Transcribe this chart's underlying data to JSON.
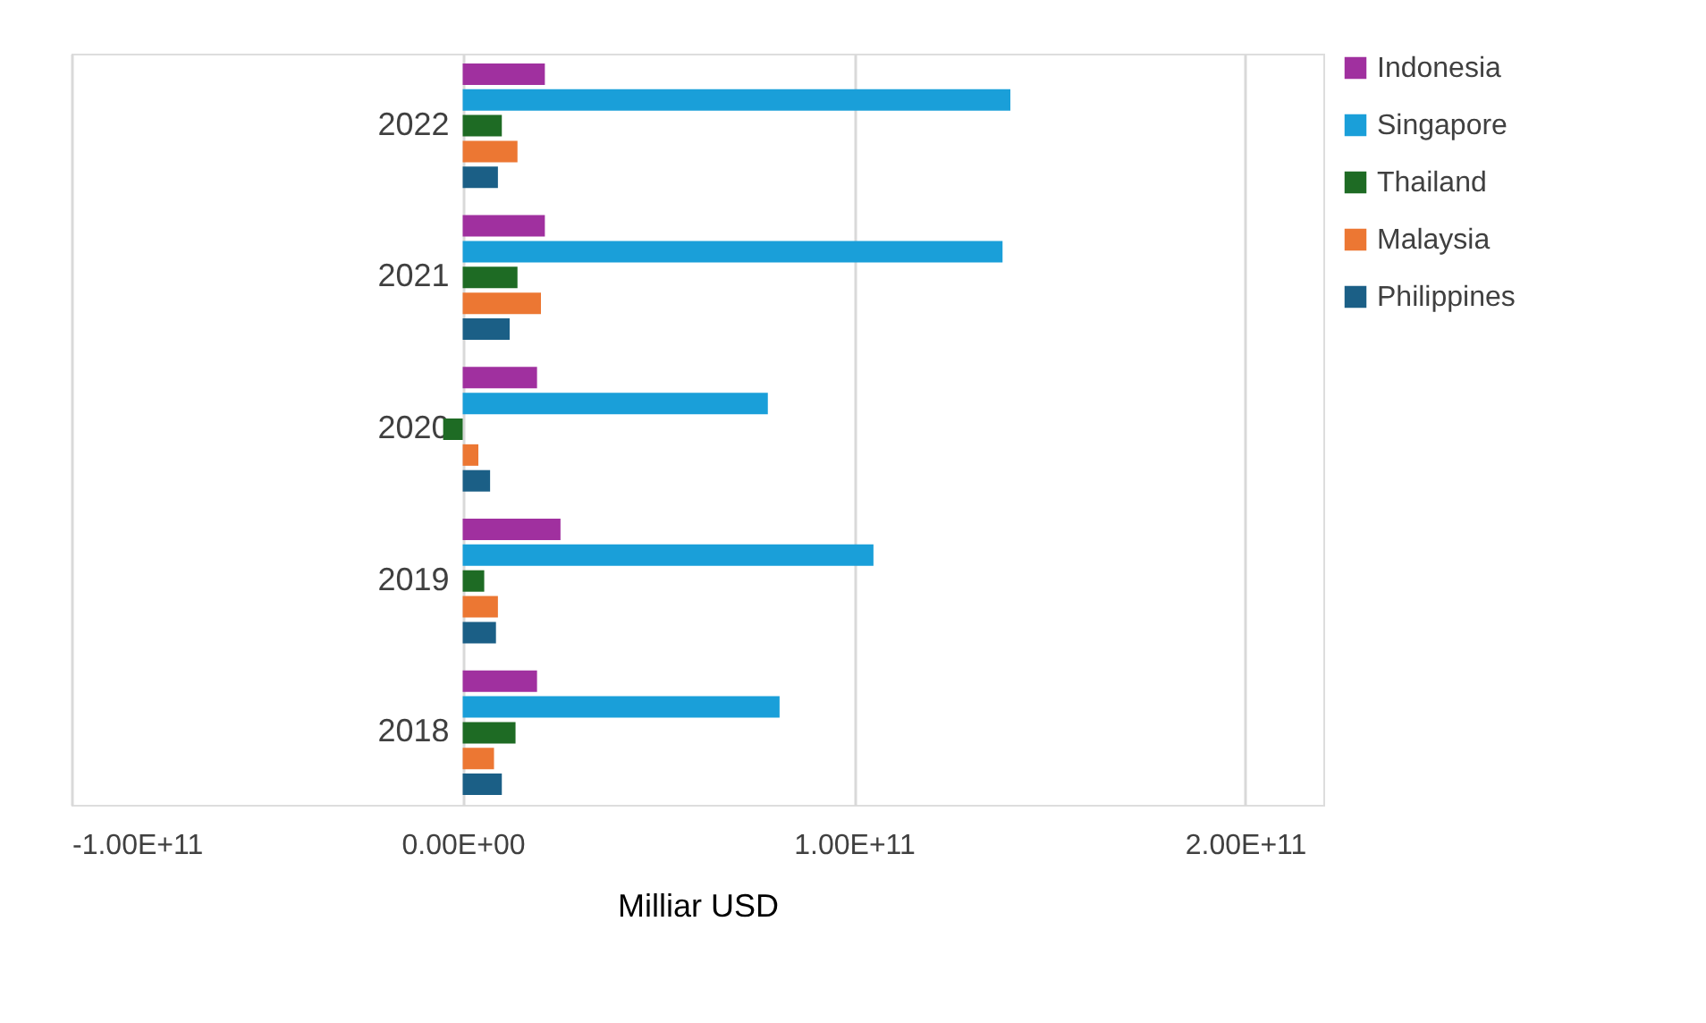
{
  "chart_data": {
    "type": "bar",
    "orientation": "horizontal",
    "xlabel": "Milliar USD",
    "categories": [
      "2022",
      "2021",
      "2020",
      "2019",
      "2018"
    ],
    "series": [
      {
        "name": "Indonesia",
        "color": "#a0309f",
        "values": [
          21000000000.0,
          21000000000.0,
          19000000000.0,
          25000000000.0,
          19000000000.0
        ]
      },
      {
        "name": "Singapore",
        "color": "#1a9fd9",
        "values": [
          140000000000.0,
          138000000000.0,
          78000000000.0,
          105000000000.0,
          81000000000.0
        ]
      },
      {
        "name": "Thailand",
        "color": "#1e6b24",
        "values": [
          10000000000.0,
          14000000000.0,
          -5000000000.0,
          5500000000.0,
          13500000000.0
        ]
      },
      {
        "name": "Malaysia",
        "color": "#ec7733",
        "values": [
          14000000000.0,
          20000000000.0,
          4000000000.0,
          9000000000.0,
          8000000000.0
        ]
      },
      {
        "name": "Philippines",
        "color": "#1b5f86",
        "values": [
          9000000000.0,
          12000000000.0,
          7000000000.0,
          8500000000.0,
          10000000000.0
        ]
      }
    ],
    "xlim": [
      -100000000000.0,
      220000000000.0
    ],
    "xticks": [
      {
        "value": -100000000000.0,
        "label": "-1.00E+11"
      },
      {
        "value": 0,
        "label": "0.00E+00"
      },
      {
        "value": 100000000000.0,
        "label": "1.00E+11"
      },
      {
        "value": 200000000000.0,
        "label": "2.00E+11"
      }
    ],
    "grid": "x",
    "legend": "right"
  }
}
